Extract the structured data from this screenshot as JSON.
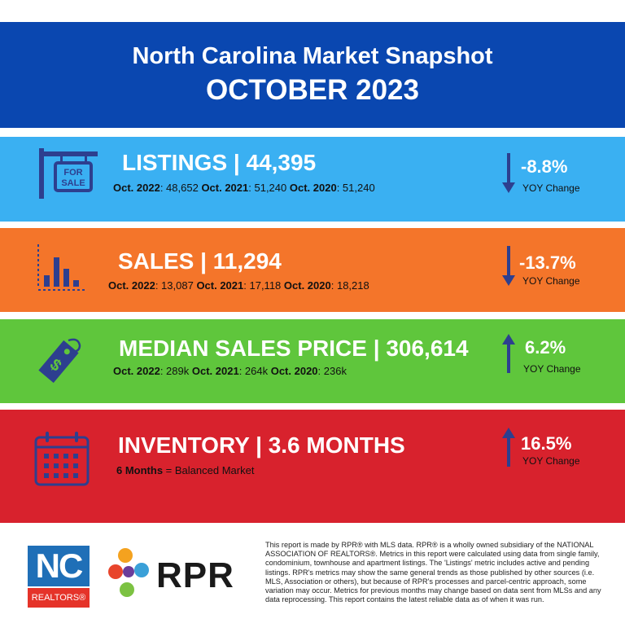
{
  "header": {
    "title": "North Carolina Market Snapshot",
    "subtitle": "OCTOBER 2023"
  },
  "listings": {
    "title": "LISTINGS | 44,395",
    "icon": "for-sale-sign-icon",
    "history": [
      {
        "label": "Oct. 2022",
        "value": ": 48,652 "
      },
      {
        "label": "Oct. 2021",
        "value": ": 51,240 "
      },
      {
        "label": "Oct. 2020",
        "value": ": 51,240"
      }
    ],
    "change": "-8.8%",
    "change_label": "YOY Change",
    "direction": "down"
  },
  "sales": {
    "title": "SALES | 11,294",
    "icon": "bar-chart-icon",
    "history": [
      {
        "label": "Oct. 2022",
        "value": ": 13,087 "
      },
      {
        "label": "Oct. 2021",
        "value": ": 17,118 "
      },
      {
        "label": "Oct. 2020",
        "value": ": 18,218"
      }
    ],
    "change": "-13.7%",
    "change_label": "YOY Change",
    "direction": "down"
  },
  "median": {
    "title": "MEDIAN SALES PRICE | 306,614",
    "icon": "price-tag-icon",
    "history": [
      {
        "label": "Oct. 2022",
        "value": ": 289k "
      },
      {
        "label": "Oct. 2021",
        "value": ": 264k "
      },
      {
        "label": "Oct. 2020",
        "value": ": 236k"
      }
    ],
    "change": "6.2%",
    "change_label": "YOY Change",
    "direction": "up"
  },
  "inventory": {
    "title": "INVENTORY | 3.6 MONTHS",
    "icon": "calendar-icon",
    "note_bold": "6 Months",
    "note_rest": " = Balanced Market",
    "change": "16.5%",
    "change_label": "YOY Change",
    "direction": "up"
  },
  "footer": {
    "nc_logo_top": "NC",
    "nc_logo_bottom": "REALTORS®",
    "rpr_logo": "RPR",
    "disclaimer": "This report is made by RPR® with MLS data. RPR® is a wholly owned subsidiary of the NATIONAL ASSOCIATION OF REALTORS®. Metrics in this report were calculated using data from single family, condominium, townhouse and apartment listings. The 'Listings' metric includes active and pending listings. RPR's metrics may show the same general trends as those published by other sources (i.e. MLS, Association or others), but because of RPR's processes and parcel-centric approach, some variation may occur. Metrics for previous months may change based on data sent from MLSs and any data reprocessing. This report contains the latest reliable data as of when it was run."
  },
  "colors": {
    "header": "#0a47b0",
    "listings": "#3ab0f2",
    "sales": "#f4752a",
    "median": "#5fc63c",
    "inventory": "#d8222d",
    "icon": "#2d3f8f"
  }
}
